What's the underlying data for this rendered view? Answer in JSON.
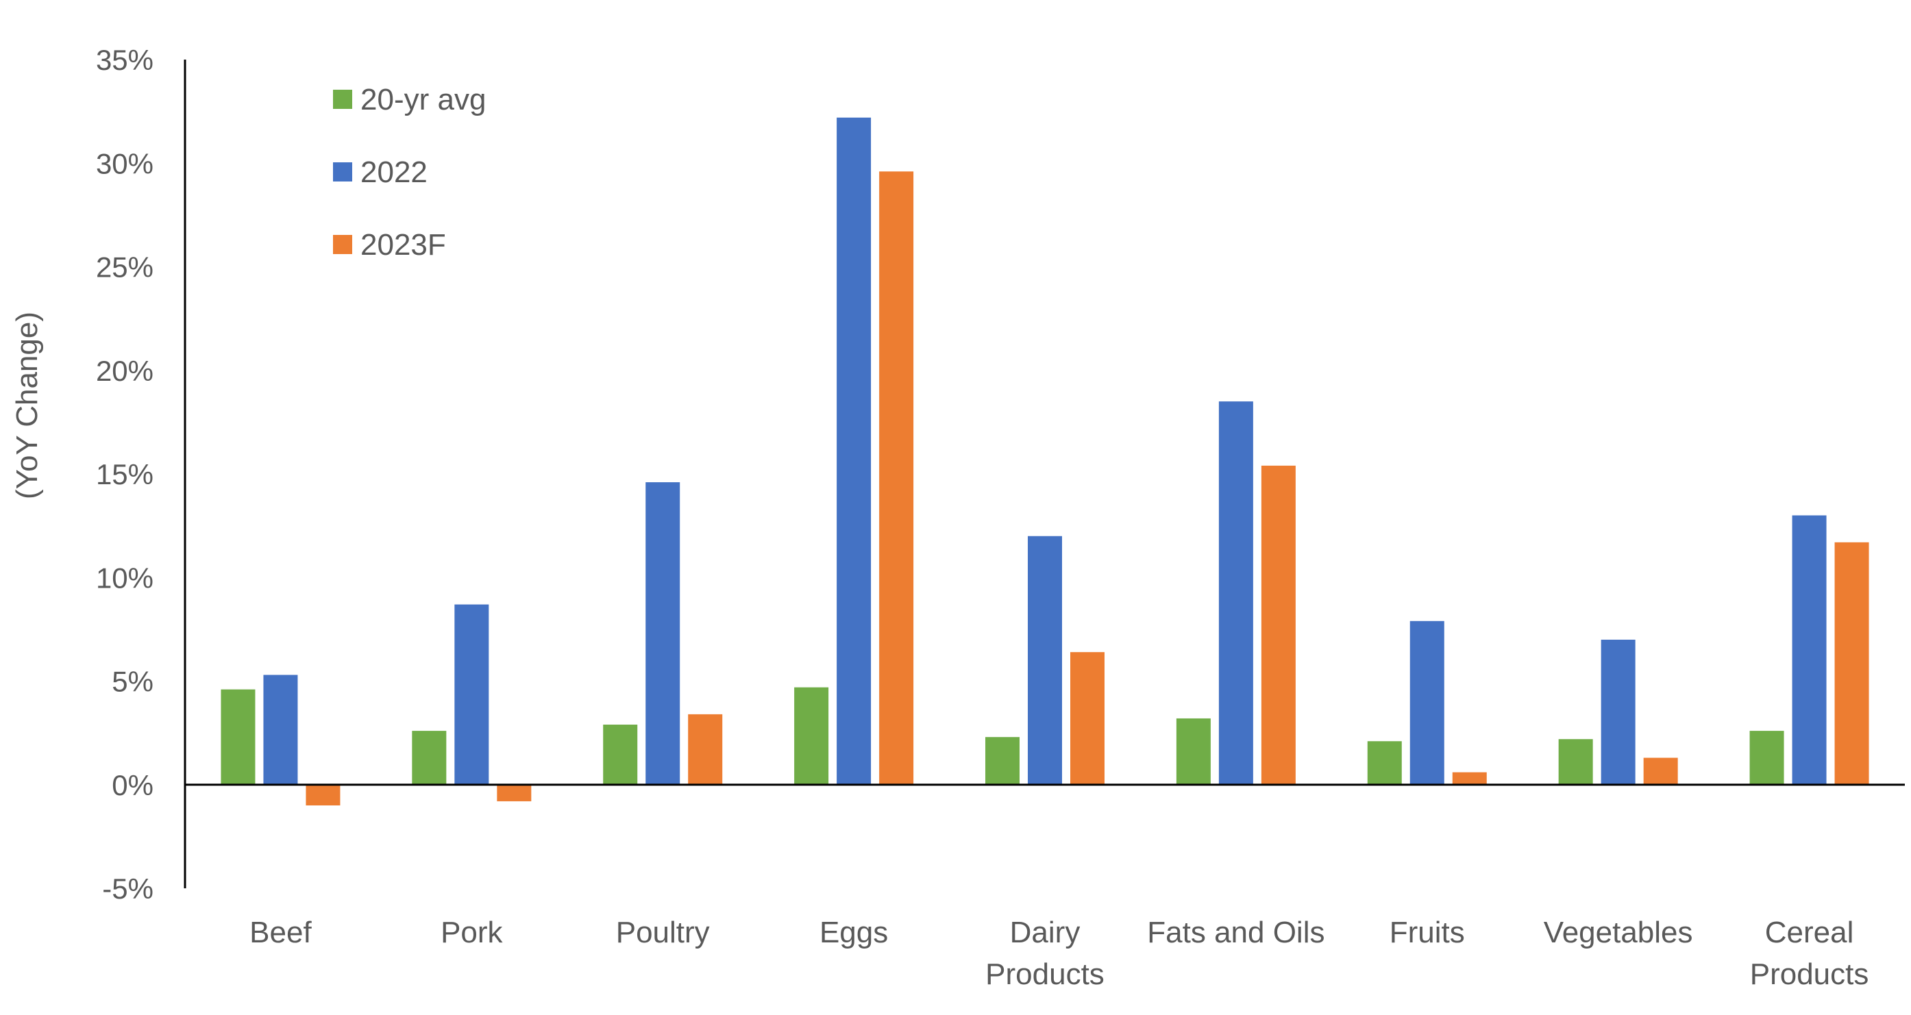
{
  "chart_data": {
    "type": "bar",
    "title": "",
    "xlabel": "",
    "ylabel": "(YoY Change)",
    "ylim": [
      -5,
      35
    ],
    "yticks": [
      -5,
      0,
      5,
      10,
      15,
      20,
      25,
      30,
      35
    ],
    "ytick_labels": [
      "-5%",
      "0%",
      "5%",
      "10%",
      "15%",
      "20%",
      "25%",
      "30%",
      "35%"
    ],
    "categories": [
      "Beef",
      "Pork",
      "Poultry",
      "Eggs",
      "Dairy Products",
      "Fats and Oils",
      "Fruits",
      "Vegetables",
      "Cereal Products"
    ],
    "series": [
      {
        "name": "20-yr avg",
        "color": "#70AD47",
        "values": [
          4.6,
          2.6,
          2.9,
          4.7,
          2.3,
          3.2,
          2.1,
          2.2,
          2.6
        ]
      },
      {
        "name": "2022",
        "color": "#4472C4",
        "values": [
          5.3,
          8.7,
          14.6,
          32.2,
          12.0,
          18.5,
          7.9,
          7.0,
          13.0
        ]
      },
      {
        "name": "2023F",
        "color": "#ED7D31",
        "values": [
          -1.0,
          -0.8,
          3.4,
          29.6,
          6.4,
          15.4,
          0.6,
          1.3,
          11.7
        ]
      }
    ],
    "legend": "top-left",
    "grid": false
  }
}
